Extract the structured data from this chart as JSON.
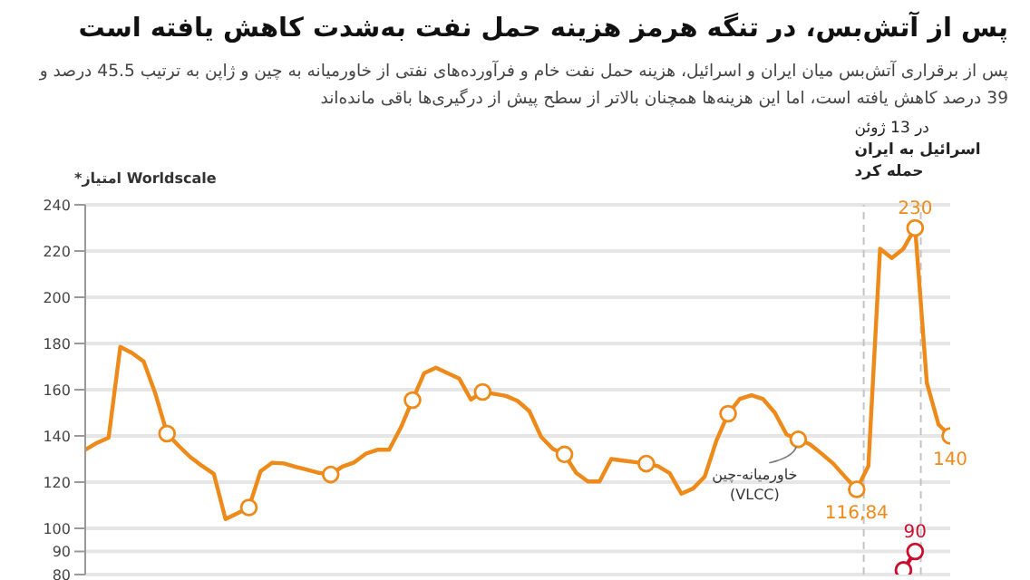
{
  "chart_data": {
    "type": "line",
    "title": "پس از آتش‌بس، در تنگه هرمز هزینه حمل نفت به‌شدت کاهش یافته است",
    "subtitle": "پس از برقراری آتش‌بس میان ایران و اسرائیل، هزینه حمل نفت خام و فرآورده‌های نفتی از خاورمیانه به چین و ژاپن به ترتیب 45.5 درصد و 39 درصد کاهش یافته است، اما این هزینه‌ها همچنان بالاتر از سطح پیش از درگیری‌ها باقی مانده‌اند",
    "ylabel": "*امتیاز Worldscale",
    "ylim": [
      80,
      240
    ],
    "yticks": [
      80,
      90,
      100,
      120,
      140,
      160,
      180,
      200,
      220,
      240
    ],
    "grid": "y",
    "tick_labels": "y",
    "categories": [
      null,
      null,
      null,
      null,
      null,
      null,
      null,
      null,
      null,
      null,
      null,
      null,
      null,
      null,
      null,
      null,
      null,
      null,
      null,
      null,
      null,
      null,
      null,
      null,
      null,
      null,
      null,
      null,
      null,
      null,
      null,
      null,
      null,
      null,
      null,
      null,
      null,
      null,
      null,
      null,
      null,
      null,
      null,
      null,
      null,
      null,
      null,
      null,
      null,
      null,
      null,
      null,
      null,
      null,
      null,
      null,
      null,
      null,
      null,
      null,
      null,
      null,
      null,
      null,
      null,
      null,
      null,
      null,
      null,
      null,
      null,
      null,
      null,
      null,
      null
    ],
    "annotations": [
      "در 13 ژوئن اسرائیل به ایران حمله کرد"
    ],
    "series": [
      {
        "name": "خاورمیانه-چین (VLCC)",
        "color": "#ee8a1a",
        "values": [
          134,
          137,
          139.2,
          178.5,
          175.9,
          172.2,
          158.3,
          141,
          135.7,
          130.8,
          127,
          123.6,
          104,
          106.5,
          109,
          124.7,
          128.4,
          128.1,
          126.6,
          125.3,
          124,
          123.3,
          126.7,
          128.5,
          132.3,
          134,
          134,
          143.6,
          155.5,
          167.2,
          169.5,
          167.2,
          164.8,
          155.7,
          159,
          158.2,
          157.3,
          155.1,
          150.7,
          139.6,
          134.4,
          132,
          124,
          120.3,
          120.3,
          130,
          129.3,
          128.7,
          128,
          126.9,
          123.9,
          115,
          117.2,
          122.4,
          138,
          149.6,
          156,
          157.6,
          155.9,
          150,
          140.6,
          138.5,
          136.4,
          132.3,
          128,
          122.3,
          116.84,
          127,
          221,
          217,
          221,
          230,
          163,
          144.9,
          140
        ]
      },
      {
        "type": "line",
        "color": "#c8102e",
        "marker": "circle",
        "values": [
          null,
          null,
          null,
          null,
          null,
          null,
          null,
          null,
          null,
          null,
          null,
          null,
          null,
          null,
          null,
          null,
          null,
          null,
          null,
          null,
          null,
          null,
          null,
          null,
          null,
          null,
          null,
          null,
          null,
          null,
          null,
          null,
          null,
          null,
          null,
          null,
          null,
          null,
          null,
          null,
          null,
          null,
          null,
          null,
          null,
          null,
          null,
          null,
          null,
          null,
          null,
          null,
          null,
          null,
          null,
          null,
          null,
          null,
          null,
          null,
          null,
          null,
          null,
          null,
          null,
          null,
          null,
          null,
          null,
          null,
          82,
          90,
          null,
          null,
          null
        ],
        "value_labels": [
          null,
          null,
          null,
          null,
          null,
          null,
          null,
          null,
          null,
          null,
          null,
          null,
          null,
          null,
          null,
          null,
          null,
          null,
          null,
          null,
          null,
          null,
          null,
          null,
          null,
          null,
          null,
          null,
          null,
          null,
          null,
          null,
          null,
          null,
          null,
          null,
          null,
          null,
          null,
          null,
          null,
          null,
          null,
          null,
          null,
          null,
          null,
          null,
          null,
          null,
          null,
          null,
          null,
          null,
          null,
          null,
          null,
          null,
          null,
          null,
          null,
          null,
          null,
          null,
          null,
          null,
          null,
          null,
          null,
          null,
          null,
          "90",
          null,
          null,
          null
        ]
      },
      {
        "type": "scatter",
        "color": "#ee8a1a",
        "marker": "circle",
        "values": [
          null,
          null,
          null,
          null,
          null,
          null,
          null,
          141,
          null,
          null,
          null,
          null,
          null,
          null,
          109,
          null,
          null,
          null,
          null,
          null,
          null,
          123.3,
          null,
          null,
          null,
          null,
          null,
          null,
          155.5,
          null,
          null,
          null,
          null,
          null,
          159,
          null,
          null,
          null,
          null,
          null,
          null,
          132,
          null,
          null,
          null,
          null,
          null,
          null,
          128,
          null,
          null,
          null,
          null,
          null,
          null,
          149.6,
          null,
          null,
          null,
          null,
          null,
          138.5,
          null,
          null,
          null,
          null,
          116.84,
          null,
          null,
          null,
          null,
          230,
          null,
          null,
          140
        ],
        "value_labels": [
          null,
          null,
          null,
          null,
          null,
          null,
          null,
          null,
          null,
          null,
          null,
          null,
          null,
          null,
          null,
          null,
          null,
          null,
          null,
          null,
          null,
          null,
          null,
          null,
          null,
          null,
          null,
          null,
          null,
          null,
          null,
          null,
          null,
          null,
          null,
          null,
          null,
          null,
          null,
          null,
          null,
          null,
          null,
          null,
          null,
          null,
          null,
          null,
          null,
          null,
          null,
          null,
          null,
          null,
          null,
          null,
          null,
          null,
          null,
          null,
          null,
          null,
          null,
          null,
          null,
          null,
          "116,84",
          null,
          null,
          null,
          null,
          "230",
          null,
          null,
          "140"
        ]
      }
    ]
  }
}
